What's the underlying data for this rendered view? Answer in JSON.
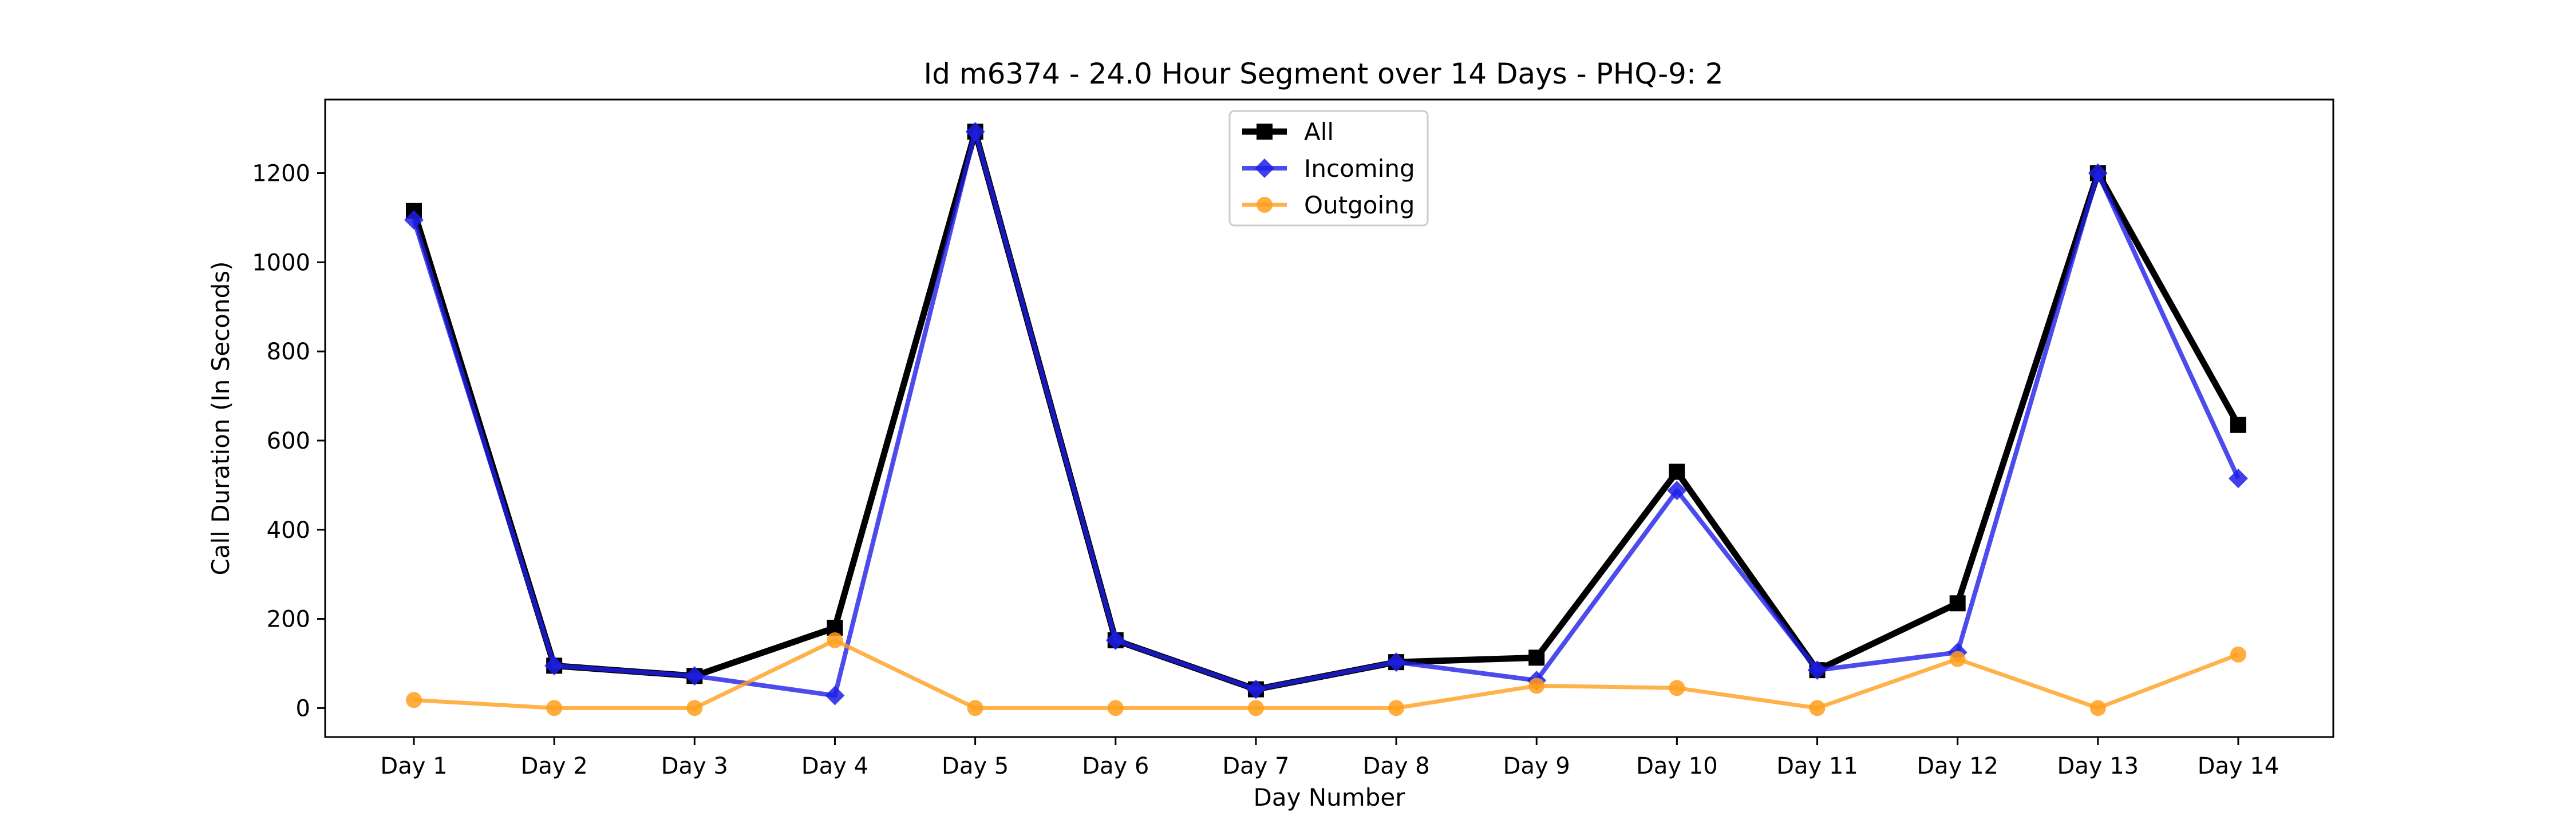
{
  "chart_data": {
    "type": "line",
    "title": "Id m6374 - 24.0 Hour Segment over 14 Days - PHQ-9: 2",
    "xlabel": "Day Number",
    "ylabel": "Call Duration (In Seconds)",
    "categories": [
      "Day 1",
      "Day 2",
      "Day 3",
      "Day 4",
      "Day 5",
      "Day 6",
      "Day 7",
      "Day 8",
      "Day 9",
      "Day 10",
      "Day 11",
      "Day 12",
      "Day 13",
      "Day 14"
    ],
    "ylim": [
      -65,
      1365
    ],
    "yticks": [
      0,
      200,
      400,
      600,
      800,
      1000,
      1200
    ],
    "grid": false,
    "legend_position": "top-center",
    "series": [
      {
        "name": "All",
        "color": "#000000",
        "marker": "square",
        "values": [
          1115,
          95,
          72,
          180,
          1293,
          152,
          42,
          103,
          113,
          530,
          85,
          235,
          1200,
          635
        ]
      },
      {
        "name": "Incoming",
        "color": "#1f1fe8",
        "marker": "diamond",
        "values": [
          1095,
          95,
          72,
          28,
          1293,
          152,
          42,
          103,
          62,
          488,
          85,
          125,
          1200,
          515
        ]
      },
      {
        "name": "Outgoing",
        "color": "#ff9f1c",
        "marker": "circle",
        "values": [
          18,
          0,
          0,
          152,
          0,
          0,
          0,
          0,
          50,
          45,
          0,
          110,
          0,
          120
        ]
      }
    ]
  }
}
